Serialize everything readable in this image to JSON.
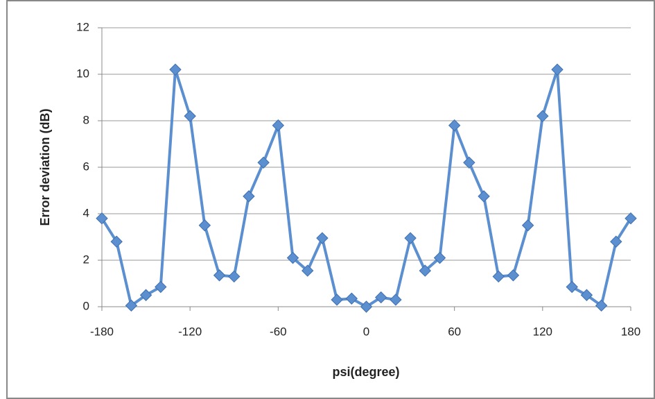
{
  "chart_data": {
    "type": "line",
    "x": [
      -180,
      -170,
      -160,
      -150,
      -140,
      -130,
      -120,
      -110,
      -100,
      -90,
      -80,
      -70,
      -60,
      -50,
      -40,
      -30,
      -20,
      -10,
      0,
      10,
      20,
      30,
      40,
      50,
      60,
      70,
      80,
      90,
      100,
      110,
      120,
      130,
      140,
      150,
      160,
      170,
      180
    ],
    "values": [
      3.8,
      2.8,
      0.05,
      0.5,
      0.85,
      10.2,
      8.2,
      3.5,
      1.35,
      1.3,
      4.75,
      6.2,
      7.8,
      2.1,
      1.55,
      2.95,
      0.3,
      0.35,
      0,
      0.4,
      0.3,
      2.95,
      1.55,
      2.1,
      7.8,
      6.2,
      4.75,
      1.3,
      1.35,
      3.5,
      8.2,
      10.2,
      0.85,
      0.5,
      0.05,
      2.8,
      3.8
    ],
    "color": "#5b8fd0",
    "x_label": "psi(degree)",
    "y_label": "Error deviation (dB)",
    "xlim": [
      -180,
      180
    ],
    "xticks": [
      -180,
      -120,
      -60,
      0,
      60,
      120,
      180
    ],
    "ylim": [
      0,
      12
    ],
    "yticks": [
      0,
      2,
      4,
      6,
      8,
      10,
      12
    ],
    "grid": true
  }
}
